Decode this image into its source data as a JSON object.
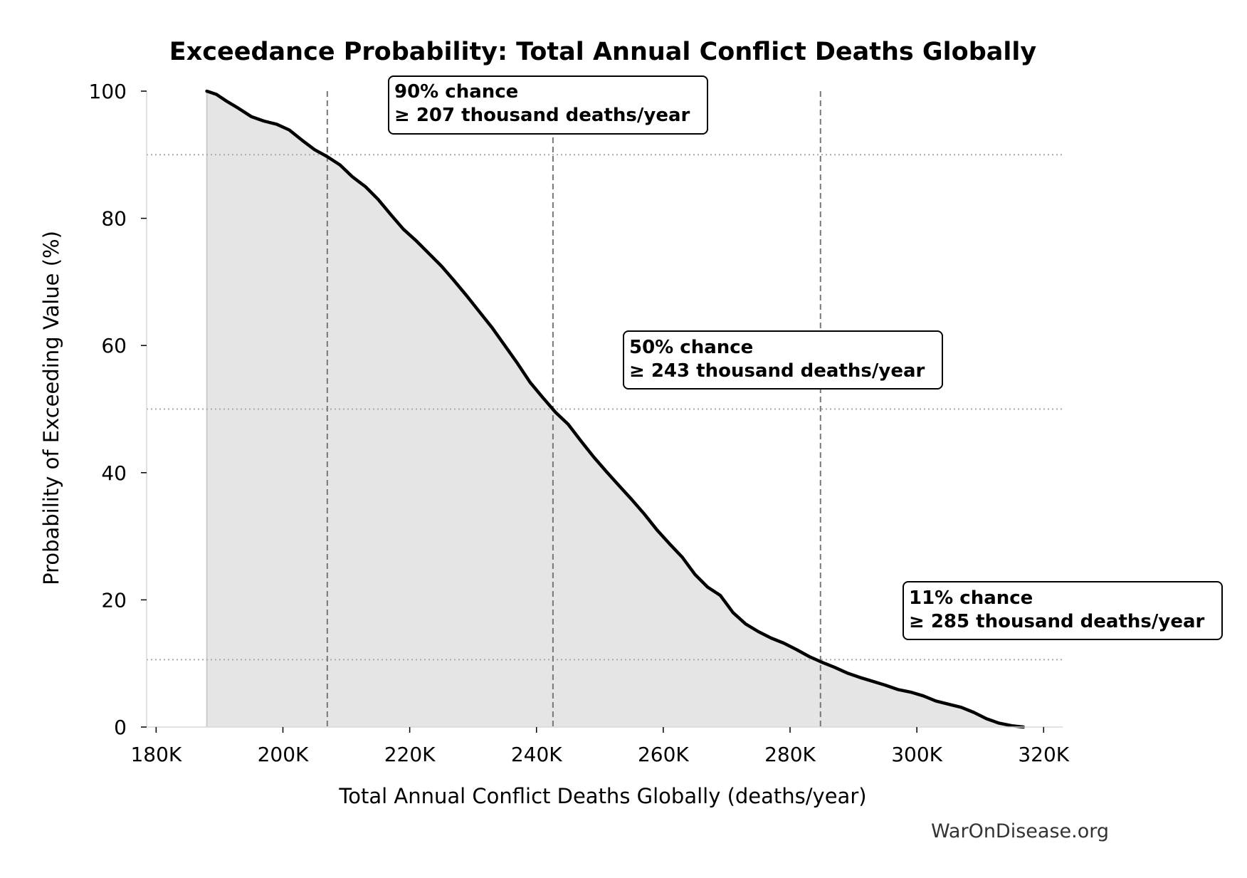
{
  "chart_data": {
    "type": "area",
    "title": "Exceedance Probability: Total Annual Conflict Deaths Globally",
    "xlabel": "Total Annual Conflict Deaths Globally (deaths/year)",
    "ylabel": "Probability of Exceeding Value (%)",
    "xlim": [
      178500,
      323000
    ],
    "ylim": [
      0,
      100
    ],
    "x_ticks": [
      180000,
      200000,
      220000,
      240000,
      260000,
      280000,
      300000,
      320000
    ],
    "x_tick_labels": [
      "180K",
      "200K",
      "220K",
      "240K",
      "260K",
      "280K",
      "300K",
      "320K"
    ],
    "y_ticks": [
      0,
      20,
      40,
      60,
      80,
      100
    ],
    "y_tick_labels": [
      "0",
      "20",
      "40",
      "60",
      "80",
      "100"
    ],
    "grid": false,
    "colors": {
      "line": "#000000",
      "fill": "#e5e5e5",
      "reference_line": "#777777",
      "reference_grid": "#aaaaaa"
    },
    "series": [
      {
        "x": [
          188000,
          189500,
          191000,
          193000,
          195000,
          197000,
          199000,
          201000,
          203000,
          205000,
          207000,
          209000,
          211000,
          213000,
          215000,
          217000,
          219000,
          221000,
          223000,
          225000,
          227000,
          229000,
          231000,
          233000,
          235000,
          237000,
          239000,
          241000,
          243000,
          245000,
          247000,
          249000,
          251000,
          253000,
          255000,
          257000,
          259000,
          261000,
          263000,
          265000,
          267000,
          269000,
          271000,
          273000,
          275000,
          277000,
          279000,
          281000,
          283000,
          285000,
          287000,
          289000,
          291000,
          293000,
          295000,
          297000,
          299000,
          301000,
          303000,
          305000,
          307000,
          309000,
          311000,
          313000,
          315000,
          316800
        ],
        "y": [
          100,
          99.5,
          98.5,
          97.3,
          96,
          95.3,
          94.8,
          93.9,
          92.3,
          90.8,
          89.7,
          88.4,
          86.5,
          85,
          83,
          80.6,
          78.3,
          76.5,
          74.5,
          72.5,
          70.2,
          67.8,
          65.3,
          62.8,
          60,
          57.2,
          54.2,
          51.8,
          49.5,
          47.6,
          45,
          42.5,
          40.2,
          38,
          35.8,
          33.5,
          31,
          28.8,
          26.7,
          24,
          22,
          20.7,
          18,
          16.2,
          15,
          14,
          13.2,
          12.2,
          11.1,
          10.2,
          9.4,
          8.5,
          7.8,
          7.2,
          6.6,
          5.9,
          5.5,
          4.9,
          4.1,
          3.6,
          3.1,
          2.3,
          1.3,
          0.6,
          0.2,
          0
        ]
      }
    ],
    "reference_lines_x": [
      207000,
      242600,
      284800
    ],
    "reference_lines_y": [
      90,
      50,
      10.6
    ],
    "annotations": [
      {
        "line1": "90% chance",
        "line2": "≥ 207 thousand deaths/year"
      },
      {
        "line1": "50% chance",
        "line2": "≥ 243 thousand deaths/year"
      },
      {
        "line1": "11% chance",
        "line2": "≥ 285 thousand deaths/year"
      }
    ],
    "fill_start_x": 188000
  },
  "watermark": "WarOnDisease.org"
}
